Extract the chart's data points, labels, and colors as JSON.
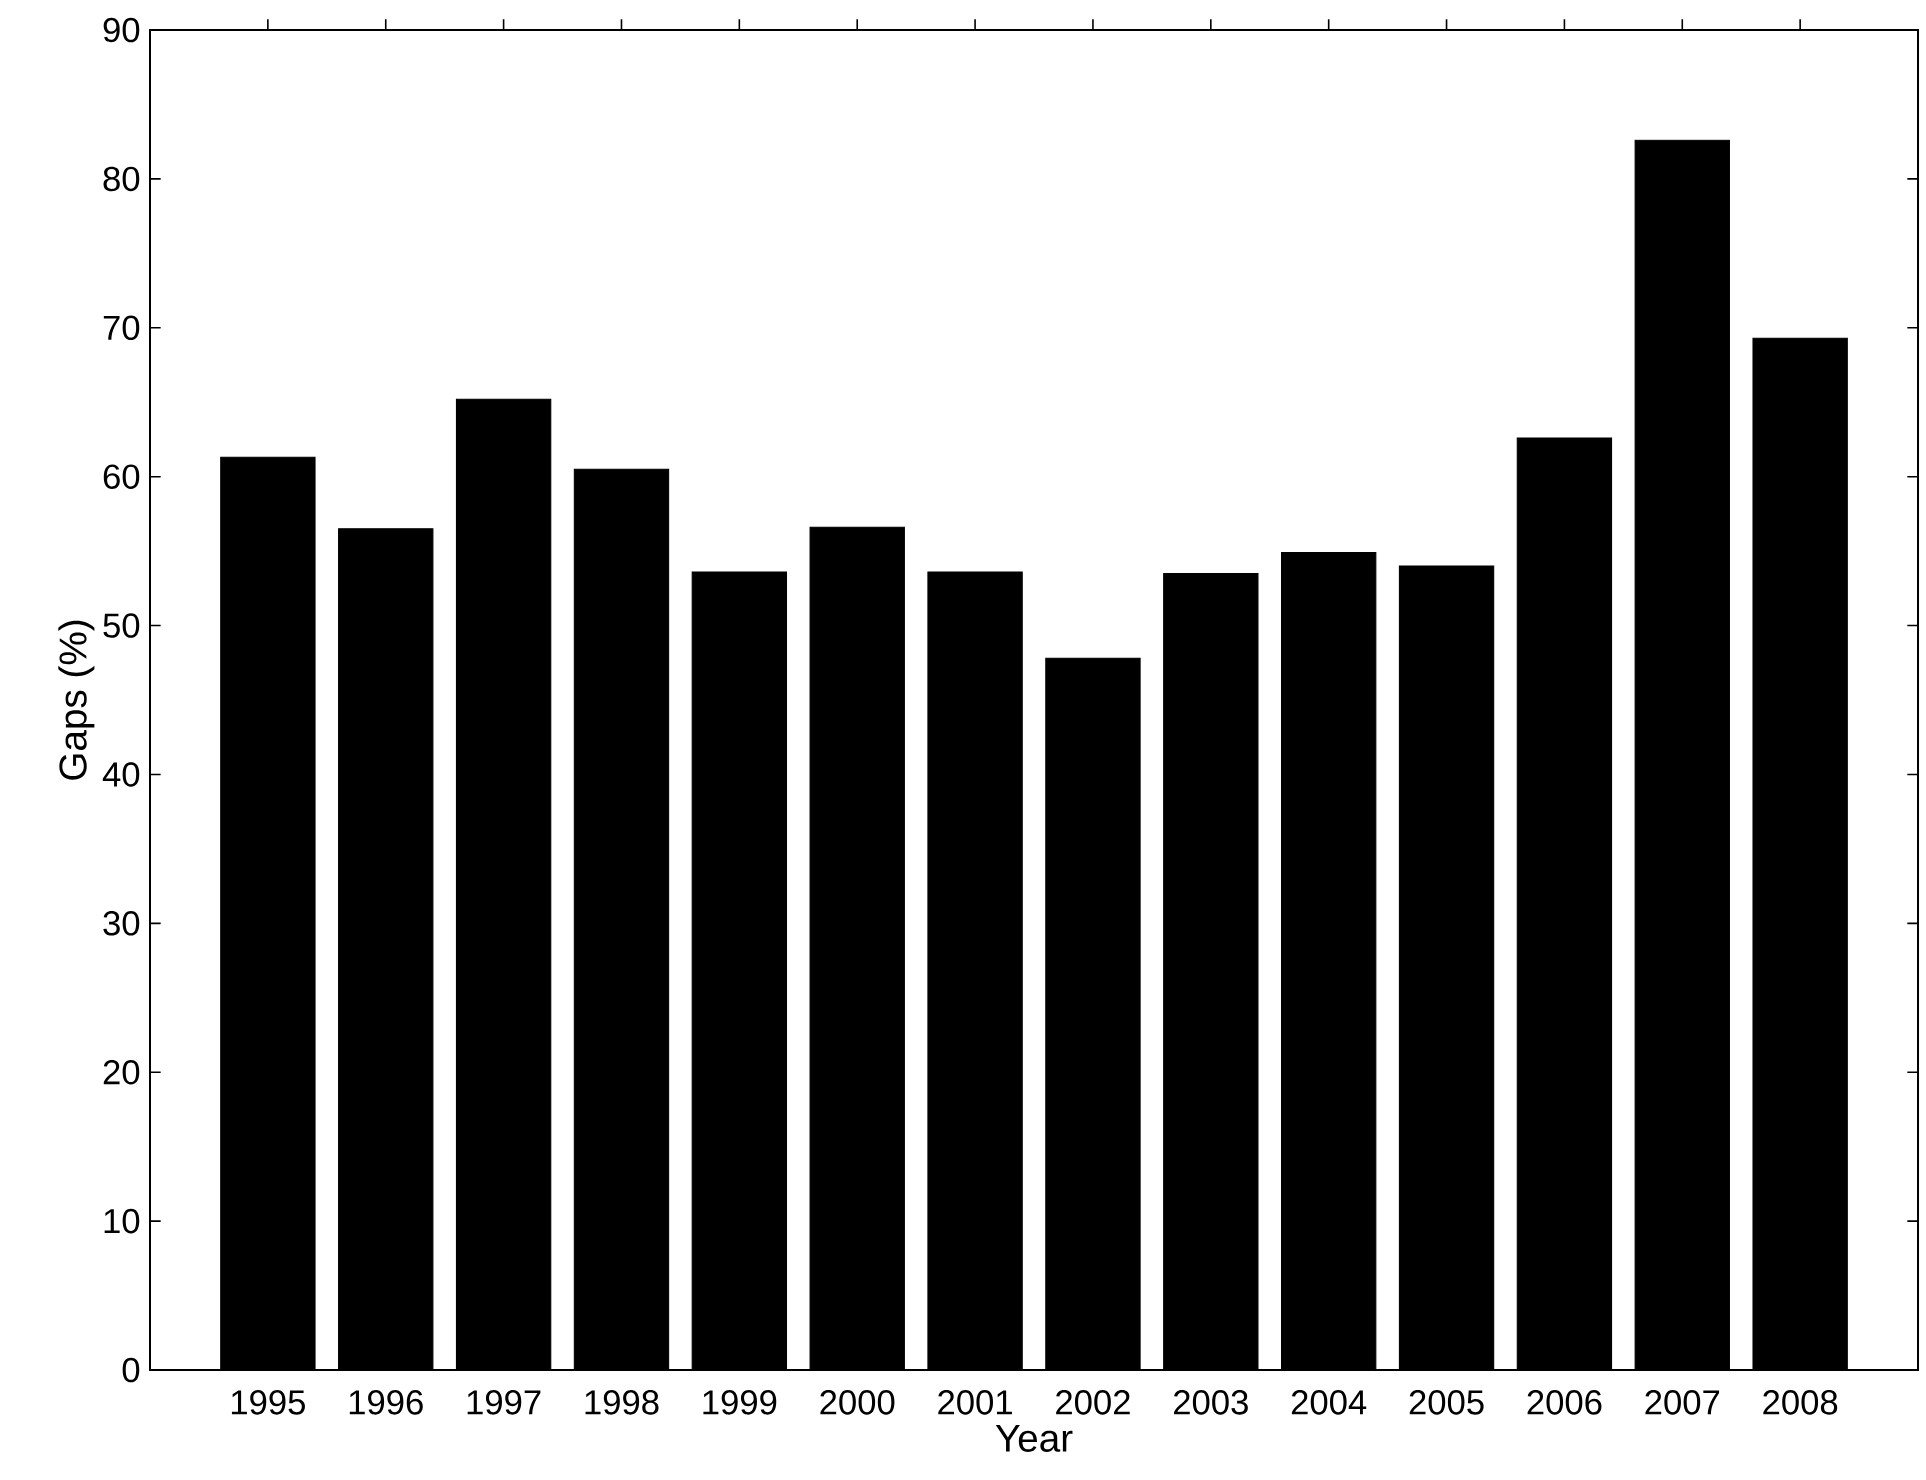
{
  "chart_data": {
    "type": "bar",
    "xlabel": "Year",
    "ylabel": "Gaps (%)",
    "categories": [
      "1995",
      "1996",
      "1997",
      "1998",
      "1999",
      "2000",
      "2001",
      "2002",
      "2003",
      "2004",
      "2005",
      "2006",
      "2007",
      "2008"
    ],
    "values": [
      61.3,
      56.5,
      65.2,
      60.5,
      53.6,
      56.6,
      53.6,
      47.8,
      53.5,
      54.9,
      54.0,
      62.6,
      82.6,
      69.3
    ],
    "color": "#000000",
    "ylim": [
      0,
      90
    ],
    "yticks": [
      0,
      10,
      20,
      30,
      40,
      50,
      60,
      70,
      80,
      90
    ],
    "grid": false
  }
}
